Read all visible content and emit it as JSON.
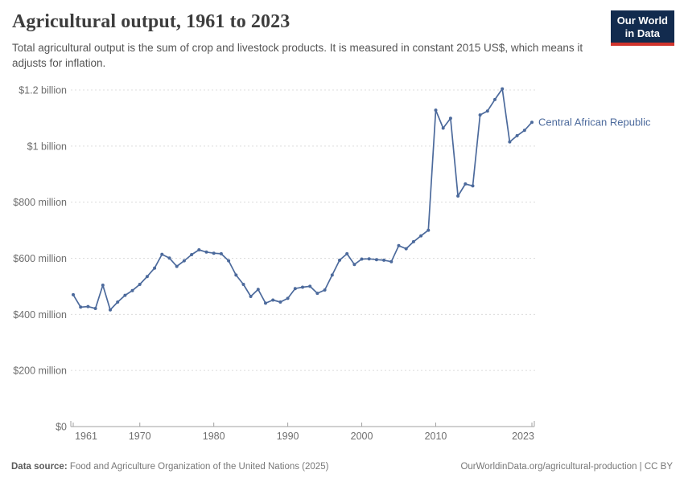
{
  "header": {
    "title": "Agricultural output, 1961 to 2023",
    "subtitle": "Total agricultural output is the sum of crop and livestock products. It is measured in constant 2015 US$, which means it adjusts for inflation.",
    "logo_line1": "Our World",
    "logo_line2": "in Data"
  },
  "chart_data": {
    "type": "line",
    "title": "Agricultural output, 1961 to 2023",
    "unit": "constant 2015 US$, millions",
    "xlim": [
      1961,
      2023
    ],
    "ylim": [
      0,
      1200
    ],
    "grid": "horizontal-dashed",
    "legend_position": "end-of-line",
    "x_ticks": [
      {
        "value": 1961,
        "label": "1961"
      },
      {
        "value": 1970,
        "label": "1970"
      },
      {
        "value": 1980,
        "label": "1980"
      },
      {
        "value": 1990,
        "label": "1990"
      },
      {
        "value": 2000,
        "label": "2000"
      },
      {
        "value": 2010,
        "label": "2010"
      },
      {
        "value": 2023,
        "label": "2023"
      }
    ],
    "y_ticks": [
      {
        "value": 0,
        "label": "$0"
      },
      {
        "value": 200,
        "label": "$200 million"
      },
      {
        "value": 400,
        "label": "$400 million"
      },
      {
        "value": 600,
        "label": "$600 million"
      },
      {
        "value": 800,
        "label": "$800 million"
      },
      {
        "value": 1000,
        "label": "$1 billion"
      },
      {
        "value": 1200,
        "label": "$1.2 billion"
      }
    ],
    "series": [
      {
        "name": "Central African Republic",
        "color": "#4c6a9c",
        "x": [
          1961,
          1962,
          1963,
          1964,
          1965,
          1966,
          1967,
          1968,
          1969,
          1970,
          1971,
          1972,
          1973,
          1974,
          1975,
          1976,
          1977,
          1978,
          1979,
          1980,
          1981,
          1982,
          1983,
          1984,
          1985,
          1986,
          1987,
          1988,
          1989,
          1990,
          1991,
          1992,
          1993,
          1994,
          1995,
          1996,
          1997,
          1998,
          1999,
          2000,
          2001,
          2002,
          2003,
          2004,
          2005,
          2006,
          2007,
          2008,
          2009,
          2010,
          2011,
          2012,
          2013,
          2014,
          2015,
          2016,
          2017,
          2018,
          2019,
          2020,
          2021,
          2022,
          2023
        ],
        "values": [
          470,
          426,
          428,
          421,
          504,
          416,
          444,
          468,
          485,
          507,
          535,
          565,
          614,
          601,
          571,
          591,
          613,
          630,
          622,
          618,
          616,
          591,
          540,
          507,
          464,
          489,
          440,
          451,
          444,
          457,
          492,
          497,
          500,
          475,
          487,
          540,
          593,
          616,
          578,
          597,
          598,
          595,
          593,
          588,
          645,
          634,
          659,
          680,
          700,
          1128,
          1064,
          1099,
          822,
          865,
          858,
          1111,
          1125,
          1166,
          1204,
          1015,
          1037,
          1056,
          1085
        ]
      }
    ]
  },
  "footer": {
    "datasource_label": "Data source:",
    "datasource_text": " Food and Agriculture Organization of the United Nations (2025)",
    "credit": "OurWorldinData.org/agricultural-production | CC BY"
  }
}
